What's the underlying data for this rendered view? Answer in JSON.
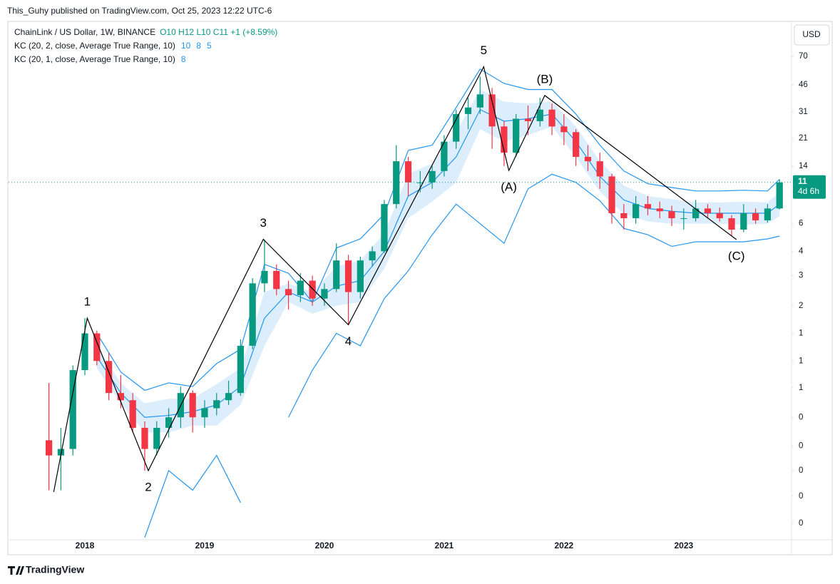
{
  "header": "This_Guhy published on TradingView.com, Oct 25, 2023 12:22 UTC-6",
  "footer": "TradingView",
  "currency": "USD",
  "chart_data": {
    "type": "candlestick",
    "title": "ChainLink / US Dollar, 1W, BINANCE",
    "ohlc_text": "O10 H12 L10 C11 +1 (+8.59%)",
    "x": [
      2017.7,
      2017.8,
      2017.9,
      2018.0,
      2018.1,
      2018.2,
      2018.3,
      2018.4,
      2018.5,
      2018.6,
      2018.7,
      2018.8,
      2018.9,
      2019.0,
      2019.1,
      2019.2,
      2019.3,
      2019.4,
      2019.5,
      2019.6,
      2019.7,
      2019.8,
      2019.9,
      2020.0,
      2020.1,
      2020.2,
      2020.3,
      2020.4,
      2020.5,
      2020.6,
      2020.7,
      2020.8,
      2020.9,
      2021.0,
      2021.1,
      2021.2,
      2021.3,
      2021.4,
      2021.5,
      2021.6,
      2021.7,
      2021.8,
      2021.9,
      2022.0,
      2022.1,
      2022.2,
      2022.3,
      2022.4,
      2022.5,
      2022.6,
      2022.7,
      2022.8,
      2022.9,
      2023.0,
      2023.1,
      2023.2,
      2023.3,
      2023.4,
      2023.5,
      2023.6,
      2023.7,
      2023.8
    ],
    "open": [
      0.25,
      0.2,
      0.22,
      0.7,
      1.2,
      0.8,
      0.5,
      0.45,
      0.3,
      0.22,
      0.3,
      0.35,
      0.5,
      0.35,
      0.4,
      0.45,
      0.5,
      1.0,
      2.5,
      3.0,
      2.3,
      2.1,
      2.6,
      2.0,
      2.3,
      3.5,
      2.2,
      3.5,
      4.0,
      8,
      15,
      11,
      11,
      13,
      20,
      30,
      33,
      40,
      25,
      17,
      28,
      27,
      32,
      25,
      23,
      16,
      15,
      12,
      7,
      6.5,
      8,
      7.5,
      7.2,
      6.5,
      6.5,
      7.5,
      7,
      6.5,
      5.5,
      7,
      6.3,
      7.5
    ],
    "high": [
      0.58,
      0.3,
      0.75,
      1.5,
      1.25,
      0.9,
      0.65,
      0.5,
      0.33,
      0.33,
      0.4,
      0.55,
      0.52,
      0.45,
      0.5,
      0.6,
      1.1,
      2.7,
      4.77,
      3.3,
      2.6,
      2.9,
      2.8,
      2.5,
      4.5,
      3.8,
      3.7,
      4.3,
      8.5,
      19,
      16,
      13,
      14,
      22,
      32,
      38,
      52,
      44,
      27,
      30,
      34,
      38,
      35,
      30,
      24,
      19,
      17,
      12.5,
      8,
      9,
      9,
      8.3,
      7.8,
      7.5,
      8.5,
      8,
      7.6,
      6.8,
      8,
      7.5,
      8,
      11.5
    ],
    "low": [
      0.12,
      0.12,
      0.2,
      0.65,
      0.75,
      0.45,
      0.4,
      0.28,
      0.16,
      0.2,
      0.26,
      0.3,
      0.28,
      0.3,
      0.36,
      0.42,
      0.48,
      0.95,
      2.2,
      2.1,
      1.7,
      1.9,
      1.8,
      1.8,
      2.2,
      1.36,
      2.0,
      3.2,
      3.9,
      7.5,
      9,
      9.5,
      10,
      12,
      18,
      24,
      30,
      18,
      14,
      16,
      22,
      25,
      22,
      19,
      14,
      13,
      10,
      6,
      5.5,
      6,
      6.8,
      6.5,
      5.8,
      5.5,
      6.2,
      6.5,
      6.2,
      5.0,
      5.3,
      6,
      6.1,
      7.4
    ],
    "close": [
      0.2,
      0.22,
      0.7,
      1.2,
      0.8,
      0.5,
      0.45,
      0.3,
      0.22,
      0.3,
      0.35,
      0.5,
      0.35,
      0.4,
      0.45,
      0.5,
      1.0,
      2.5,
      3.0,
      2.3,
      2.1,
      2.6,
      2.0,
      2.3,
      3.5,
      2.2,
      3.5,
      4.0,
      8,
      15,
      11,
      11,
      13,
      20,
      30,
      33,
      40,
      25,
      17,
      28,
      27,
      32,
      25,
      23,
      16,
      15,
      12,
      7,
      6.5,
      8,
      7.5,
      7.2,
      6.5,
      6.5,
      7.5,
      7,
      6.5,
      5.5,
      7,
      6.3,
      7.5,
      11
    ],
    "up_color": "#089981",
    "down_color": "#f23645",
    "band_x": [
      2018.1,
      2018.3,
      2018.5,
      2018.7,
      2018.9,
      2019.1,
      2019.3,
      2019.5,
      2019.7,
      2019.9,
      2020.1,
      2020.3,
      2020.5,
      2020.7,
      2020.9,
      2021.1,
      2021.3,
      2021.5,
      2021.7,
      2021.9,
      2022.1,
      2022.3,
      2022.5,
      2022.7,
      2022.9,
      2023.1,
      2023.3,
      2023.5,
      2023.7,
      2023.8
    ],
    "indicators": [
      {
        "name": "KC (20, 2, close, Average True Range, 10)",
        "readout": [
          10,
          8,
          5
        ],
        "color": "#2196f3",
        "upper": [
          1.2,
          0.68,
          0.52,
          0.58,
          0.55,
          0.77,
          0.95,
          3.3,
          2.9,
          1.9,
          4.2,
          4.8,
          6.9,
          17.6,
          19,
          33,
          58,
          47,
          43,
          43,
          30,
          19,
          13,
          10.8,
          10.2,
          9.7,
          9.7,
          9.8,
          9.7,
          11.5
        ],
        "middle": [
          0.85,
          0.5,
          0.35,
          0.36,
          0.38,
          0.42,
          0.55,
          1.5,
          2.2,
          1.9,
          2.4,
          2.6,
          4.0,
          9,
          11,
          16,
          32,
          27,
          28,
          30,
          20,
          12,
          8.5,
          7.5,
          7.2,
          7.0,
          7.0,
          7.0,
          7.0,
          8.0
        ],
        "lower": [
          null,
          null,
          0.06,
          0.16,
          0.12,
          0.2,
          0.1,
          null,
          0.35,
          0.7,
          1.2,
          1.0,
          2.0,
          3.0,
          5.1,
          8,
          6,
          4.5,
          10,
          12.4,
          11,
          8.4,
          5.6,
          5.1,
          4.3,
          4.6,
          4.6,
          4.6,
          4.8,
          5.0
        ]
      },
      {
        "name": "KC (20, 1, close, Average True Range, 10)",
        "readout": [
          8
        ],
        "color": "#dceefc",
        "upper": [
          1.0,
          0.58,
          0.43,
          0.46,
          0.46,
          0.57,
          0.72,
          2.2,
          2.5,
          2.2,
          3.2,
          3.5,
          5.2,
          12.5,
          14.5,
          23,
          43,
          36,
          35,
          36,
          25,
          15,
          10.5,
          9,
          8.6,
          8.2,
          8.2,
          8.3,
          8.2,
          9.5
        ],
        "lower": [
          0.72,
          0.43,
          0.28,
          0.28,
          0.31,
          0.31,
          0.42,
          1.0,
          1.9,
          1.6,
          1.8,
          1.9,
          3.1,
          6.5,
          8.3,
          11,
          24,
          20,
          22,
          25,
          16,
          9.6,
          6.9,
          6.2,
          6.0,
          6.0,
          6.0,
          5.9,
          6.0,
          6.7
        ]
      }
    ],
    "wave_line": {
      "x": [
        2017.74,
        2018.02,
        2018.53,
        2019.49,
        2020.2,
        2021.33,
        2021.54,
        2021.84,
        2023.44
      ],
      "y": [
        0.117,
        1.5,
        0.16,
        4.77,
        1.36,
        60,
        13.1,
        39.4,
        4.75
      ]
    },
    "wave_labels": [
      "1",
      "2",
      "3",
      "4",
      "5",
      "(A)",
      "(B)",
      "(C)"
    ],
    "wave_label_pos": [
      "above",
      "below",
      "above",
      "below",
      "above",
      "below",
      "above",
      "below"
    ],
    "last_price": 11,
    "countdown": "4d 6h",
    "log_scale": true,
    "grid": false,
    "xlim": [
      2017.363,
      2023.9
    ],
    "xticks": [
      2018,
      2019,
      2020,
      2021,
      2022,
      2023
    ],
    "ylim": [
      0.058,
      115.6
    ],
    "yticks": [
      70,
      46,
      31,
      21,
      14,
      6,
      4,
      {
        "value": 2.8,
        "label": "3"
      },
      {
        "value": 1.8,
        "label": "2"
      },
      {
        "value": 1.2,
        "label": "1"
      },
      {
        "value": 0.8,
        "label": "1"
      },
      {
        "value": 0.54,
        "label": "1"
      },
      {
        "value": 0.35,
        "label": "0"
      },
      {
        "value": 0.23,
        "label": "0"
      },
      {
        "value": 0.16,
        "label": "0"
      },
      {
        "value": 0.11,
        "label": "0"
      },
      {
        "value": 0.074,
        "label": "0"
      }
    ]
  }
}
